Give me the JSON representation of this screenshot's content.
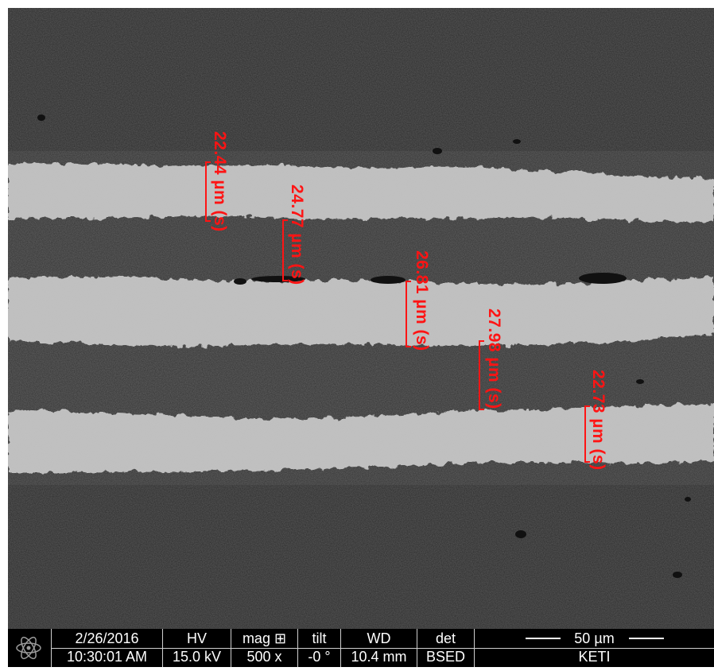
{
  "measurements": [
    {
      "label": "22.44 µm (s)"
    },
    {
      "label": "24.77 µm (s)"
    },
    {
      "label": "26.81 µm (s)"
    },
    {
      "label": "27.98 µm (s)"
    },
    {
      "label": "22.73 µm (s)"
    }
  ],
  "databar": {
    "date": "2/26/2016",
    "time": "10:30:01 AM",
    "hv_label": "HV",
    "hv_value": "15.0 kV",
    "mag_label": "mag ⊞",
    "mag_value": "500 x",
    "tilt_label": "tilt",
    "tilt_value": "-0 °",
    "wd_label": "WD",
    "wd_value": "10.4 mm",
    "det_label": "det",
    "det_value": "BSED",
    "scale_label": "50 µm",
    "institution": "KETI"
  },
  "colors": {
    "dark_layer": "#5c5c5c",
    "light_layer": "#bdbdbd",
    "annotation": "#ff1414",
    "databar_bg": "#000000",
    "databar_text": "#ffffff"
  },
  "icons": {
    "logo": "fei-atom-logo-icon"
  }
}
